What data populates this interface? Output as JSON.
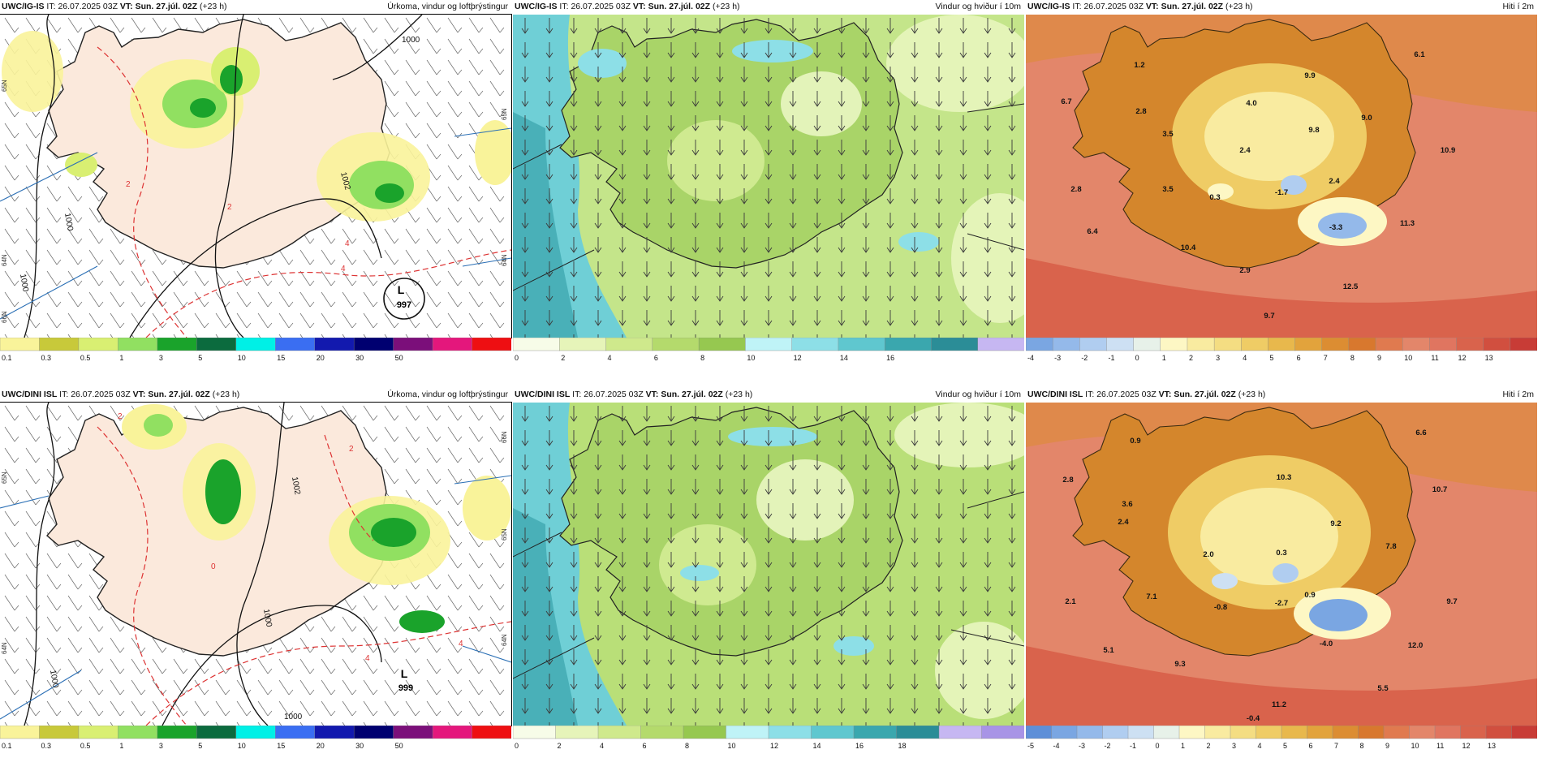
{
  "header": {
    "model_ig": "UWC/IG-IS",
    "model_dini": "UWC/DINI ISL",
    "it_label": "IT:",
    "it_value": "26.07.2025 03Z",
    "vt_label": "VT:",
    "vt_value": "Sun. 27.júl. 02Z",
    "lead": "(+23 h)"
  },
  "titles": {
    "precip": "Úrkoma, vindur og loftþrýstingur",
    "wind": "Vindur og hviður í 10m",
    "temp": "Hiti í 2m"
  },
  "colors": {
    "land": "#fbe9dc",
    "sea_white": "#ffffff",
    "wind_light": "#d8ef9a",
    "wind_mid": "#a9d468",
    "wind_dark": "#8bc24c",
    "wind_sea": "#6fcfd6",
    "temp_sea": "#e07a5f",
    "temp_land": "#d4862c",
    "temp_high": "#f3d27a",
    "ice": "#9cc0ec"
  },
  "panels": {
    "ig_precip": {
      "low_label": "L",
      "low_value": "997",
      "isobars": [
        "1000",
        "1000",
        "1000",
        "1002"
      ],
      "lat_labels": [
        "65N",
        "64N",
        "64N",
        "65N",
        "66N"
      ],
      "temp_labels": [
        "2",
        "4",
        "4",
        "2"
      ]
    },
    "dini_precip": {
      "low_label": "L",
      "low_value": "999",
      "isobars": [
        "1002",
        "1000",
        "1000",
        "1000"
      ],
      "lat_labels": [
        "65N",
        "64N",
        "66N",
        "65N",
        "64N"
      ],
      "temp_labels": [
        "2",
        "0",
        "4",
        "2",
        "4"
      ]
    },
    "ig_temp": {
      "values": [
        "1.2",
        "6.1",
        "6.7",
        "2.8",
        "4.0",
        "9.9",
        "3.5",
        "9.8",
        "9.0",
        "2.4",
        "10.9",
        "2.8",
        "3.5",
        "0.3",
        "-1.7",
        "2.4",
        "-3.3",
        "11.3",
        "6.4",
        "10.4",
        "2.9",
        "12.5",
        "9.7"
      ]
    },
    "dini_temp": {
      "values": [
        "0.9",
        "6.6",
        "2.8",
        "3.6",
        "10.3",
        "10.7",
        "2.4",
        "9.2",
        "2.0",
        "0.3",
        "7.8",
        "2.1",
        "7.1",
        "-0.8",
        "-2.7",
        "0.9",
        "-4.0",
        "9.7",
        "12.0",
        "5.1",
        "9.3",
        "5.5",
        "11.2",
        "-0.4"
      ]
    }
  },
  "colorbars": {
    "precip": {
      "labels": [
        "0.1",
        "0.3",
        "0.5",
        "1",
        "3",
        "5",
        "10",
        "15",
        "20",
        "30",
        "50"
      ],
      "colors": [
        "#f9f39a",
        "#c8c93a",
        "#d9ef72",
        "#91e061",
        "#1aa32b",
        "#0b6b3e",
        "#00f0e6",
        "#3a6ef2",
        "#1219ae",
        "#000070",
        "#7b0f7a",
        "#e4177c",
        "#ee0f12"
      ]
    },
    "wind_ig": {
      "labels": [
        "0",
        "2",
        "4",
        "6",
        "8",
        "10",
        "12",
        "14",
        "16"
      ],
      "colors": [
        "#f7fce8",
        "#e6f4b9",
        "#cfe98c",
        "#b4da6c",
        "#96c850",
        "#bff3f7",
        "#8ddfe7",
        "#5fc7cf",
        "#3aa7ae",
        "#2b8d97",
        "#c6b7f2"
      ]
    },
    "wind_dini": {
      "labels": [
        "0",
        "2",
        "4",
        "6",
        "8",
        "10",
        "12",
        "14",
        "16",
        "18"
      ],
      "colors": [
        "#f7fce8",
        "#e6f4b9",
        "#cfe98c",
        "#b4da6c",
        "#96c850",
        "#bff3f7",
        "#8ddfe7",
        "#5fc7cf",
        "#3aa7ae",
        "#2b8d97",
        "#c6b7f2",
        "#a894e6"
      ]
    },
    "temp_ig": {
      "labels": [
        "-4",
        "-3",
        "-2",
        "-1",
        "0",
        "1",
        "2",
        "3",
        "4",
        "5",
        "6",
        "7",
        "8",
        "9",
        "10",
        "11",
        "12",
        "13"
      ],
      "colors": [
        "#7aa6e2",
        "#94b9ea",
        "#b0cdf0",
        "#cde0f3",
        "#e7f1e9",
        "#fdf7c4",
        "#f9eba0",
        "#f4dd82",
        "#efcc65",
        "#e8b84c",
        "#e2a33c",
        "#dc8d32",
        "#d8782e",
        "#e07a4f",
        "#e3866a",
        "#e07560",
        "#d9634c",
        "#d14f3f",
        "#c83c36"
      ]
    },
    "temp_dini": {
      "labels": [
        "-5",
        "-4",
        "-3",
        "-2",
        "-1",
        "0",
        "1",
        "2",
        "3",
        "4",
        "5",
        "6",
        "7",
        "8",
        "9",
        "10",
        "11",
        "12",
        "13"
      ],
      "colors": [
        "#5e8fd8",
        "#7aa6e2",
        "#94b9ea",
        "#b0cdf0",
        "#cde0f3",
        "#e7f1e9",
        "#fdf7c4",
        "#f9eba0",
        "#f4dd82",
        "#efcc65",
        "#e8b84c",
        "#e2a33c",
        "#dc8d32",
        "#d8782e",
        "#e07a4f",
        "#e3866a",
        "#e07560",
        "#d9634c",
        "#d14f3f",
        "#c83c36"
      ]
    }
  }
}
